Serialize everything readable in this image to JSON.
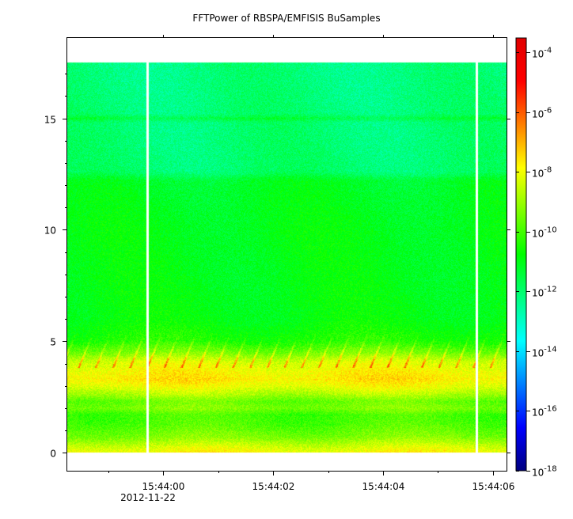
{
  "chart_data": {
    "type": "heatmap",
    "title": "FFTPower of RBSPA/EMFISIS  BuSamples",
    "xlabel": "",
    "ylabel": "",
    "x_tick_labels": [
      "15:44:00",
      "15:44:02",
      "15:44:04",
      "15:44:06"
    ],
    "x_tick_seconds": [
      0,
      2,
      4,
      6
    ],
    "x_minor_tick_seconds": [
      -1,
      1,
      3,
      5
    ],
    "x_date_label": "2012-11-22",
    "xlim_seconds": [
      -1.75,
      6.25
    ],
    "y_ticks": [
      0,
      5,
      10,
      15
    ],
    "ylim": [
      -0.8,
      18.6
    ],
    "y_data_top": 17.5,
    "data_gaps_seconds": [
      -0.3,
      5.7
    ],
    "colorbar": {
      "scale": "log",
      "range": [
        1e-18,
        0.0003
      ],
      "tick_base": "10",
      "tick_exponents": [
        "-4",
        "-6",
        "-8",
        "-10",
        "-12",
        "-14",
        "-16",
        "-18"
      ],
      "colormap": [
        "#00007f",
        "#0000ff",
        "#007fff",
        "#00ffff",
        "#00ff7f",
        "#00ff00",
        "#7fff00",
        "#ffff00",
        "#ff7f00",
        "#ff0000",
        "#e00000"
      ]
    },
    "power_profile_log10": [
      {
        "y": 0.0,
        "v": -7.8
      },
      {
        "y": 0.2,
        "v": -8.2
      },
      {
        "y": 0.4,
        "v": -8.6
      },
      {
        "y": 0.7,
        "v": -9.3
      },
      {
        "y": 1.0,
        "v": -9.6
      },
      {
        "y": 1.3,
        "v": -9.9
      },
      {
        "y": 1.7,
        "v": -10.0
      },
      {
        "y": 2.0,
        "v": -9.3
      },
      {
        "y": 2.3,
        "v": -9.6
      },
      {
        "y": 2.6,
        "v": -8.8
      },
      {
        "y": 3.0,
        "v": -8.0
      },
      {
        "y": 3.3,
        "v": -7.6
      },
      {
        "y": 3.7,
        "v": -7.9
      },
      {
        "y": 4.1,
        "v": -8.3
      },
      {
        "y": 4.5,
        "v": -9.4
      },
      {
        "y": 5.0,
        "v": -10.4
      },
      {
        "y": 6.0,
        "v": -10.9
      },
      {
        "y": 8.0,
        "v": -11.0
      },
      {
        "y": 10.0,
        "v": -11.0
      },
      {
        "y": 12.2,
        "v": -11.2
      },
      {
        "y": 12.6,
        "v": -12.0
      },
      {
        "y": 14.8,
        "v": -12.1
      },
      {
        "y": 15.0,
        "v": -11.5
      },
      {
        "y": 15.2,
        "v": -12.1
      },
      {
        "y": 17.5,
        "v": -12.2
      }
    ]
  }
}
